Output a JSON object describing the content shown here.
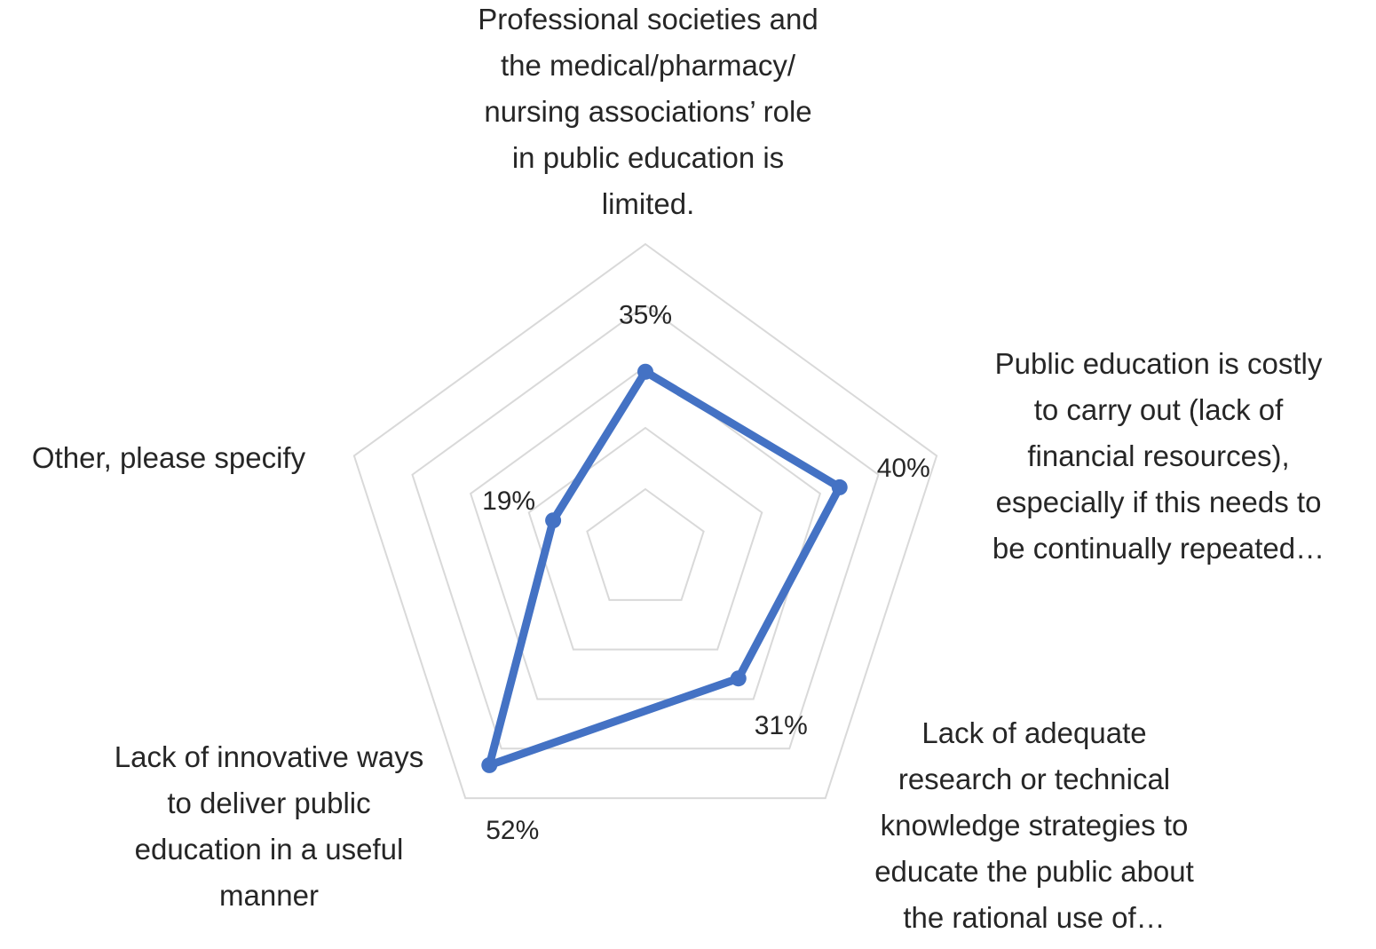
{
  "chart_data": {
    "type": "radar",
    "title": "",
    "categories": [
      [
        "Professional societies and",
        "the medical/pharmacy/",
        "nursing associations’ role",
        "in public education is",
        "limited."
      ],
      [
        "Public education is costly",
        "to carry out (lack of",
        "financial resources),",
        "especially if this needs to",
        "be continually repeated…"
      ],
      [
        "Lack of adequate",
        "research or technical",
        "knowledge strategies to",
        "educate the public about",
        "the rational use of…"
      ],
      [
        "Lack of innovative ways",
        "to deliver public",
        "education in a useful",
        "manner"
      ],
      [
        "Other, please specify"
      ]
    ],
    "series": [
      {
        "values": [
          35,
          40,
          31,
          52,
          19
        ],
        "labels": [
          "35%",
          "40%",
          "31%",
          "52%",
          "19%"
        ]
      }
    ],
    "rlim": [
      0,
      60
    ],
    "grid_levels": 5,
    "grid": true,
    "legend": "none",
    "colors": {
      "series": "#4472c4",
      "grid": "#d9d9d9",
      "text": "#262626"
    }
  }
}
